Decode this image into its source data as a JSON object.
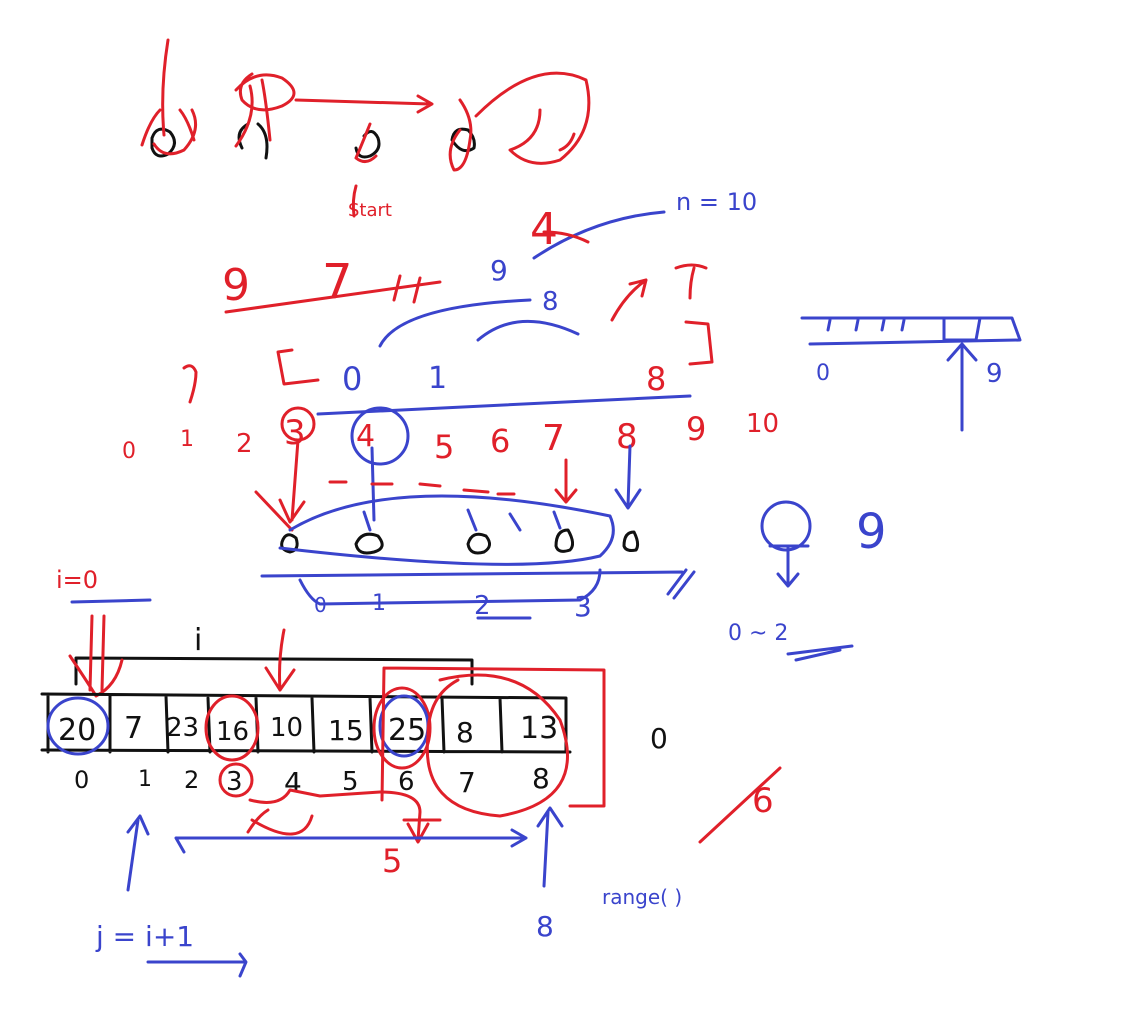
{
  "canvas": {
    "background": "#ffffff"
  },
  "colors": {
    "red_ink": "#e0202a",
    "blue_ink": "#3a44cc",
    "black_ink": "#111111"
  },
  "top_labels": {
    "n_eq": "n = 10",
    "start": "Start",
    "i_label": "i",
    "i_eq0": "i=0",
    "j_eq": "j = i+1",
    "range_call": "range(  )"
  },
  "red_index_row": [
    "0",
    "1",
    "2",
    "3",
    "4",
    "5",
    "6",
    "7",
    "8",
    "9",
    "10"
  ],
  "blue_index_row": [
    "0",
    "1",
    "2",
    "3"
  ],
  "array_values": [
    "20",
    "7",
    "23",
    "16",
    "10",
    "15",
    "25",
    "8",
    "13"
  ],
  "array_indices": [
    "0",
    "1",
    "2",
    "3",
    "4",
    "5",
    "6",
    "7",
    "8"
  ],
  "misc_numbers": {
    "blue_9": "9",
    "blue_8_top": "8",
    "red_8": "8",
    "red_9_a": "9",
    "red_7": "7",
    "red_4": "4",
    "red_bracket_0": "0",
    "red_bracket_1": "1",
    "number_line_0": "0",
    "number_line_9": "9",
    "blue_9_right": "9",
    "blue_0_2": "0 ~ 2",
    "black_0": "0",
    "red_5": "5",
    "blue_8_bottom": "8",
    "red_6": "6"
  }
}
